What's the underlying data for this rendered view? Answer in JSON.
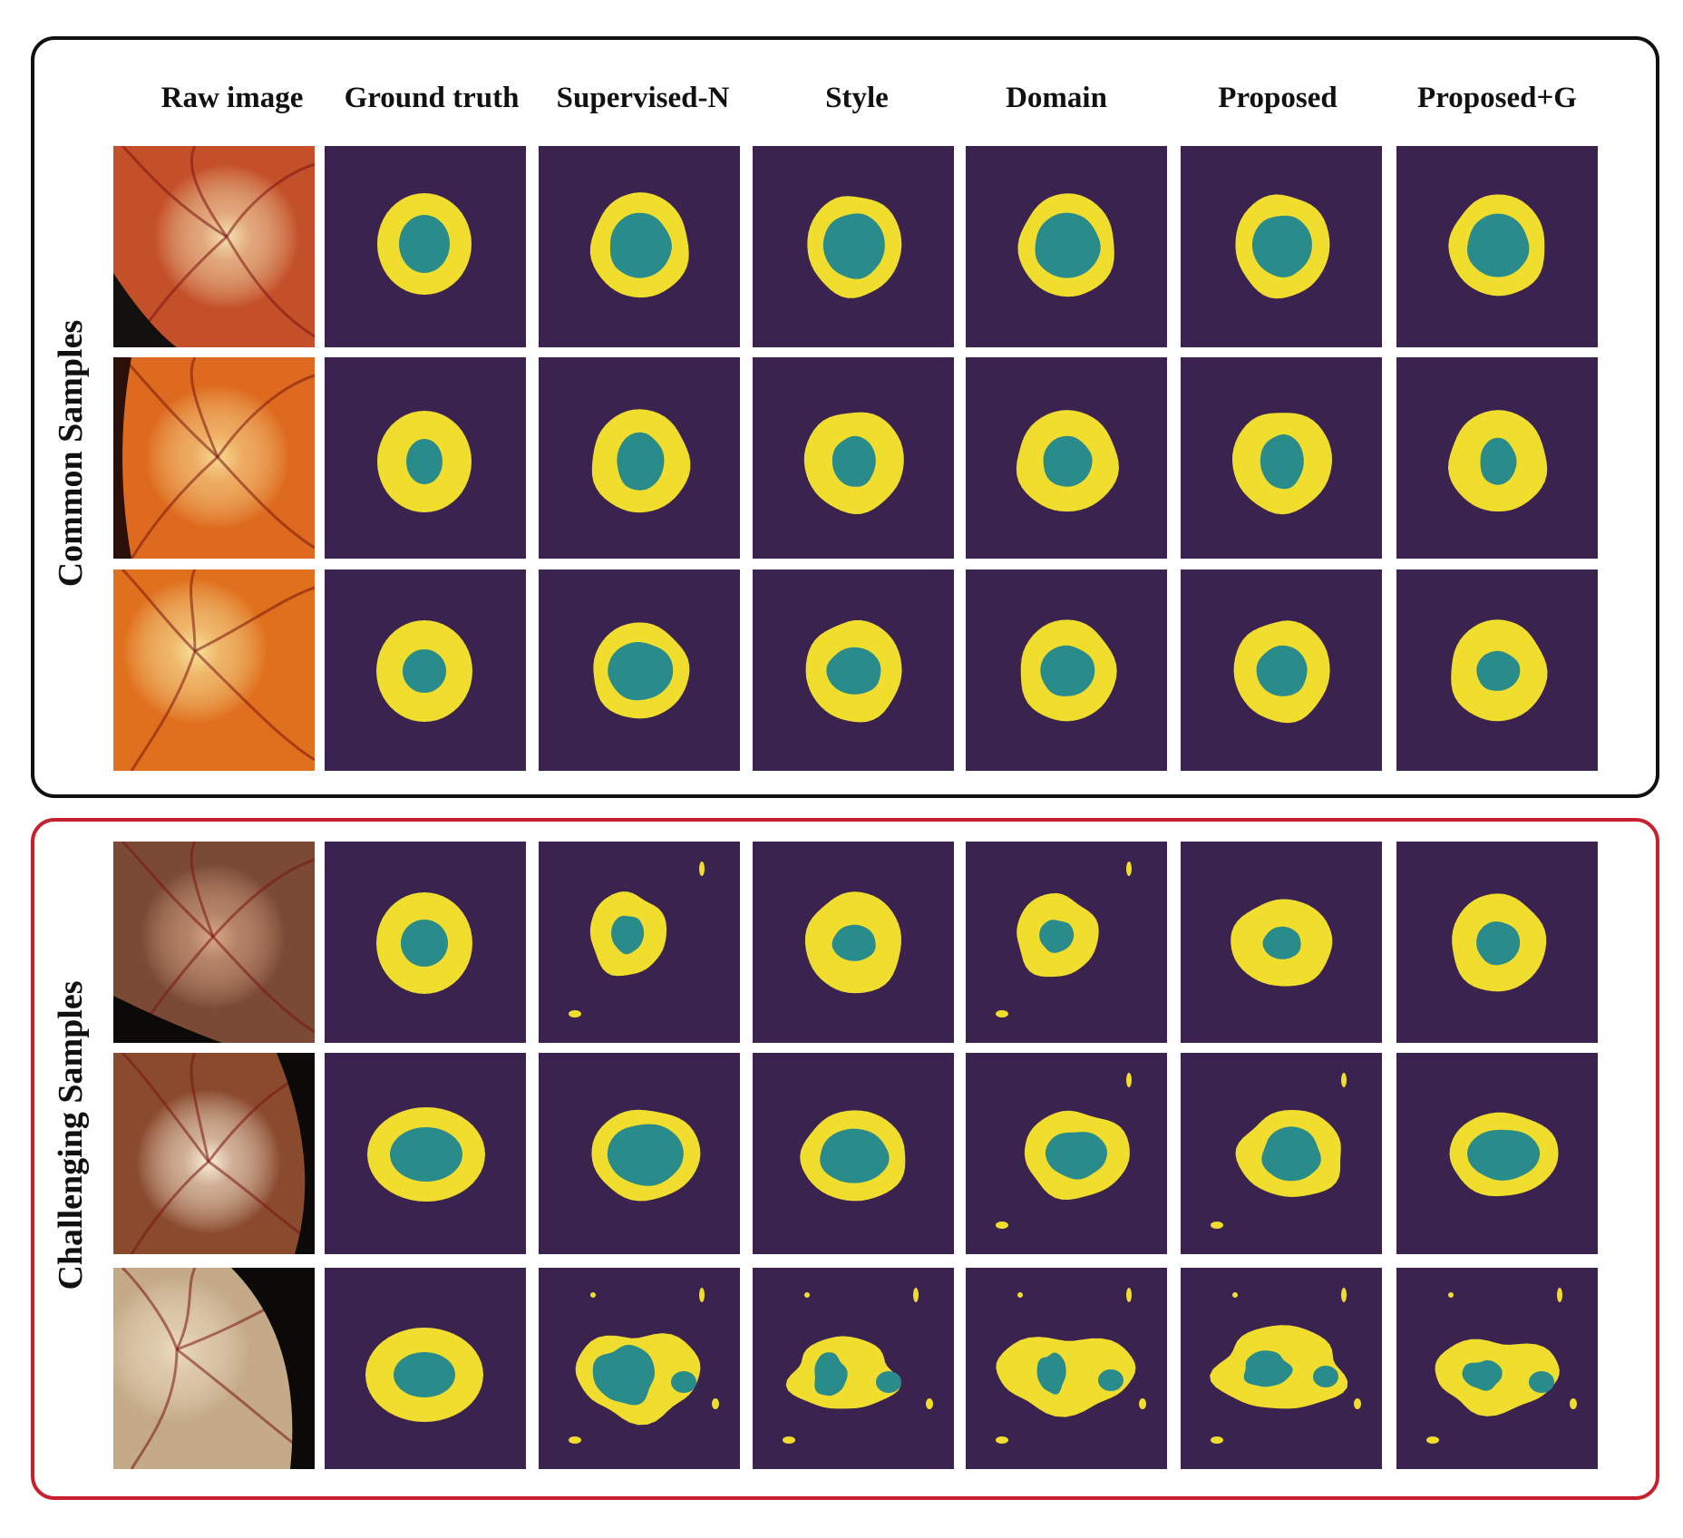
{
  "column_headers": [
    "Raw image",
    "Ground truth",
    "Supervised-N",
    "Style",
    "Domain",
    "Proposed",
    "Proposed+G"
  ],
  "groups": [
    {
      "label": "Common Samples",
      "border_color": "#111111"
    },
    {
      "label": "Challenging Samples",
      "border_color": "#c8202f"
    }
  ],
  "colors": {
    "mask_background": "#3b2350",
    "optic_disc": "#f0dd2e",
    "optic_cup": "#2a8c8a",
    "common_border": "#111111",
    "challenging_border": "#c8202f"
  },
  "rows": [
    {
      "group": "Common Samples",
      "fundus": {
        "bg": "#c4502a",
        "glow": "#f4e0b0",
        "dark": "#151010"
      }
    },
    {
      "group": "Common Samples",
      "fundus": {
        "bg": "#dd6a1e",
        "glow": "#f8d890",
        "dark": "#2a1008"
      }
    },
    {
      "group": "Common Samples",
      "fundus": {
        "bg": "#e0701e",
        "glow": "#f7e39a",
        "dark": ""
      }
    },
    {
      "group": "Challenging Samples",
      "fundus": {
        "bg": "#7a4a36",
        "glow": "#d9a887",
        "dark": "#0c0a08"
      }
    },
    {
      "group": "Challenging Samples",
      "fundus": {
        "bg": "#8a4a2e",
        "glow": "#fbf0d8",
        "dark": "#0c0a08"
      }
    },
    {
      "group": "Challenging Samples",
      "fundus": {
        "bg": "#c4aa88",
        "glow": "#ecdcc0",
        "dark": "#0c0a08"
      }
    }
  ]
}
